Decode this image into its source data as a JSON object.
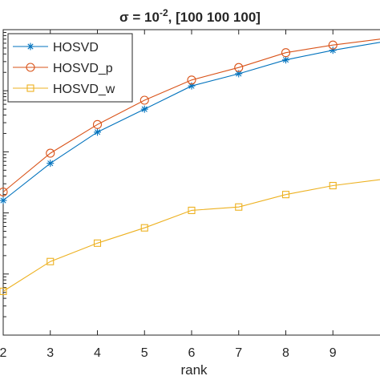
{
  "chart_data": {
    "type": "line",
    "title_prefix": "σ = 10",
    "title_exponent": "-2",
    "title_suffix": ", [100  100  100]",
    "xlabel": "rank",
    "ylabel": "",
    "x": [
      2,
      3,
      4,
      5,
      6,
      7,
      8,
      9,
      10
    ],
    "xticks": [
      "2",
      "3",
      "4",
      "5",
      "6",
      "7",
      "8",
      "9"
    ],
    "xlim": [
      2,
      10
    ],
    "yscale": "log",
    "ylim": [
      1e-05,
      1
    ],
    "grid": false,
    "legend_position": "top-left",
    "series": [
      {
        "name": "HOSVD",
        "marker": "asterisk",
        "color": "#0072BD",
        "values": [
          0.0016,
          0.0065,
          0.021,
          0.05,
          0.12,
          0.19,
          0.32,
          0.46,
          0.62
        ]
      },
      {
        "name": "HOSVD_p",
        "marker": "circle",
        "color": "#D95319",
        "values": [
          0.0022,
          0.0095,
          0.028,
          0.07,
          0.15,
          0.24,
          0.42,
          0.56,
          0.7
        ]
      },
      {
        "name": "HOSVD_w",
        "marker": "square",
        "color": "#EDB120",
        "values": [
          5.2e-05,
          0.00016,
          0.00032,
          0.00057,
          0.0011,
          0.00125,
          0.002,
          0.0028,
          0.0035
        ]
      }
    ]
  }
}
